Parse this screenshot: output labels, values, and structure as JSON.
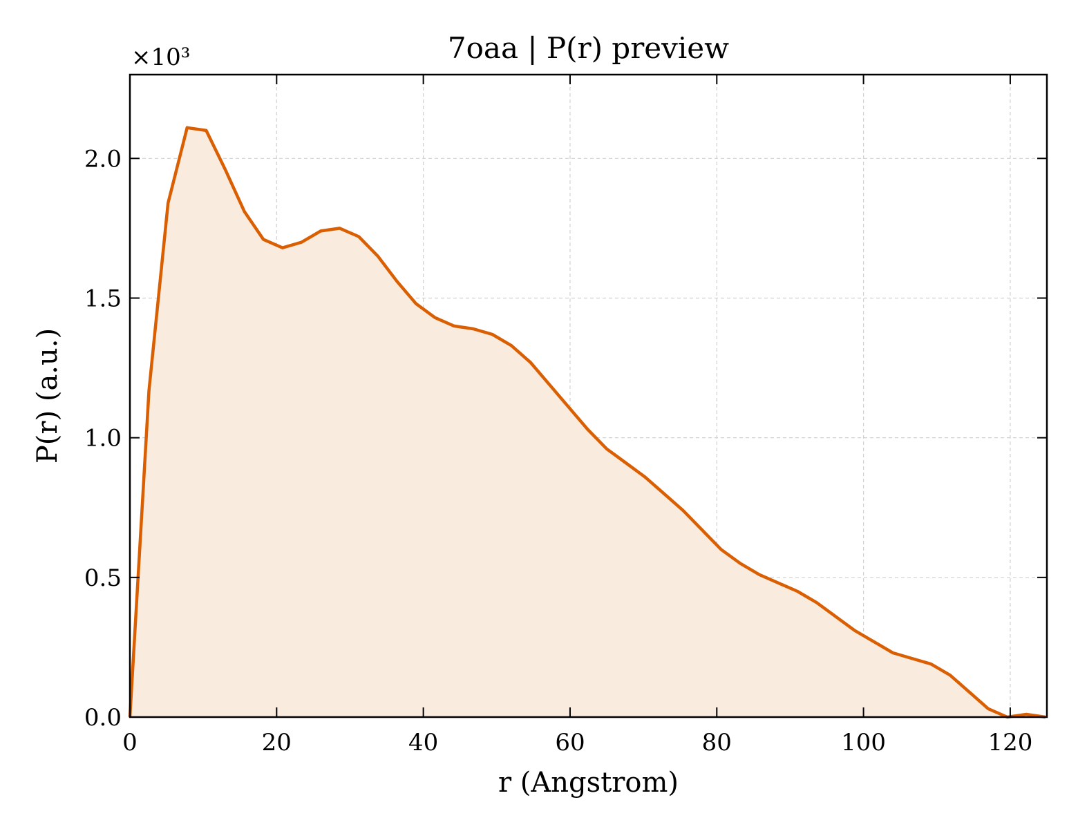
{
  "chart_data": {
    "type": "area",
    "title": "7oaa | P(r) preview",
    "xlabel": "r (Angstrom)",
    "ylabel": "P(r) (a.u.)",
    "y_multiplier_label": "×10³",
    "xlim": [
      0,
      125
    ],
    "ylim": [
      0,
      2.3
    ],
    "xticks": [
      0,
      20,
      40,
      60,
      80,
      100,
      120
    ],
    "yticks": [
      0.0,
      0.5,
      1.0,
      1.5,
      2.0
    ],
    "xtick_labels": [
      "0",
      "20",
      "40",
      "60",
      "80",
      "100",
      "120"
    ],
    "ytick_labels": [
      "0.0",
      "0.5",
      "1.0",
      "1.5",
      "2.0"
    ],
    "grid": true,
    "line_color": "#d95f02",
    "fill_color": "#faebdf",
    "x": [
      0,
      2.6,
      5.2,
      7.8,
      10.4,
      13.0,
      15.6,
      18.2,
      20.8,
      23.4,
      26.0,
      28.6,
      31.2,
      33.8,
      36.4,
      39.0,
      41.6,
      44.2,
      46.8,
      49.4,
      52.0,
      54.6,
      57.2,
      59.8,
      62.4,
      65.0,
      67.6,
      70.2,
      72.8,
      75.4,
      78.0,
      80.6,
      83.2,
      85.8,
      88.4,
      91.0,
      93.6,
      96.2,
      98.8,
      101.4,
      104.0,
      106.6,
      109.2,
      111.8,
      114.4,
      117.0,
      119.6,
      122.2,
      124.8
    ],
    "y": [
      0,
      1.17,
      1.84,
      2.11,
      2.1,
      1.96,
      1.81,
      1.71,
      1.68,
      1.7,
      1.74,
      1.75,
      1.72,
      1.65,
      1.56,
      1.48,
      1.43,
      1.4,
      1.39,
      1.37,
      1.33,
      1.27,
      1.19,
      1.11,
      1.03,
      0.96,
      0.91,
      0.86,
      0.8,
      0.74,
      0.67,
      0.6,
      0.55,
      0.51,
      0.48,
      0.45,
      0.41,
      0.36,
      0.31,
      0.27,
      0.23,
      0.21,
      0.19,
      0.15,
      0.09,
      0.03,
      0.0,
      0.01,
      0.0
    ]
  }
}
